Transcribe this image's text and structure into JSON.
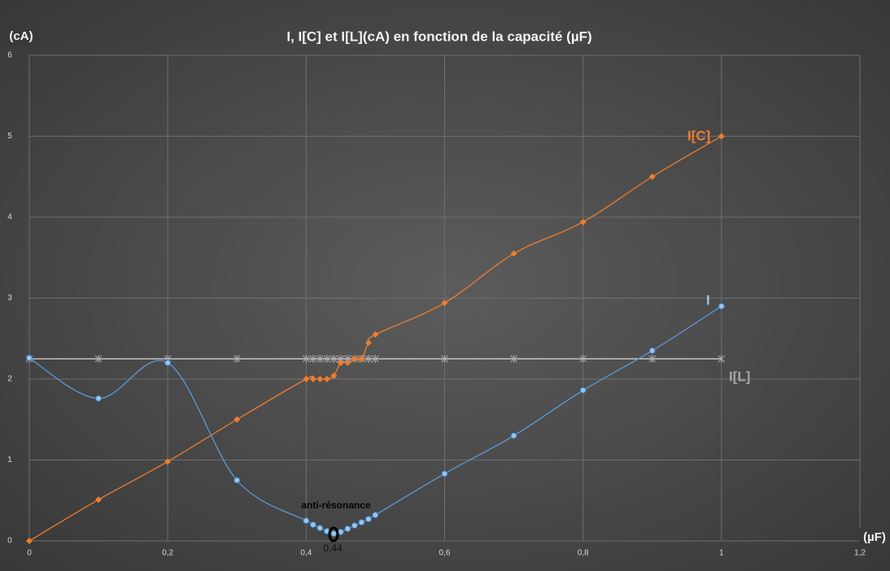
{
  "chart_data": {
    "type": "line",
    "title": "I, I[C] et I[L](cA) en fonction de la capacité (µF)",
    "y_label": "(cA)",
    "x_label": "(µF)",
    "x": [
      0,
      0.1,
      0.2,
      0.3,
      0.4,
      0.41,
      0.42,
      0.43,
      0.44,
      0.45,
      0.46,
      0.47,
      0.48,
      0.49,
      0.5,
      0.6,
      0.7,
      0.8,
      0.9,
      1
    ],
    "series": [
      {
        "name": "I[C]",
        "color": "#ed7d31",
        "marker": "diamond",
        "values": [
          0,
          0.51,
          0.98,
          1.5,
          2.0,
          2.0,
          2.0,
          2.0,
          2.04,
          2.2,
          2.2,
          2.25,
          2.25,
          2.45,
          2.55,
          2.94,
          3.55,
          3.94,
          4.5,
          5.0
        ]
      },
      {
        "name": "I",
        "color": "#9dc3e6",
        "marker": "circle",
        "values": [
          2.26,
          1.76,
          2.2,
          0.75,
          0.25,
          0.2,
          0.16,
          0.12,
          0.09,
          0.11,
          0.15,
          0.19,
          0.23,
          0.27,
          0.32,
          0.83,
          1.3,
          1.86,
          2.35,
          2.9
        ]
      },
      {
        "name": "I[L]",
        "color": "#a6a6a6",
        "marker": "star",
        "values": [
          2.25,
          2.25,
          2.25,
          2.25,
          2.25,
          2.25,
          2.25,
          2.25,
          2.25,
          2.25,
          2.25,
          2.25,
          2.25,
          2.25,
          2.25,
          2.25,
          2.25,
          2.25,
          2.25,
          2.25
        ]
      }
    ],
    "annotations": [
      "anti-résonance",
      "0,44"
    ],
    "xlim": [
      0,
      1.2
    ],
    "ylim": [
      0,
      6
    ],
    "xticks": [
      0,
      {
        "value": 0.2,
        "label": "0,2"
      },
      {
        "value": 0.4,
        "label": "0,4"
      },
      {
        "value": 0.6,
        "label": "0,6"
      },
      {
        "value": 0.8,
        "label": "0,8"
      },
      1,
      {
        "value": 1.2,
        "label": "1,2"
      }
    ],
    "yticks": [
      0,
      1,
      2,
      3,
      4,
      5,
      6
    ],
    "grid": true,
    "smooth": true
  }
}
